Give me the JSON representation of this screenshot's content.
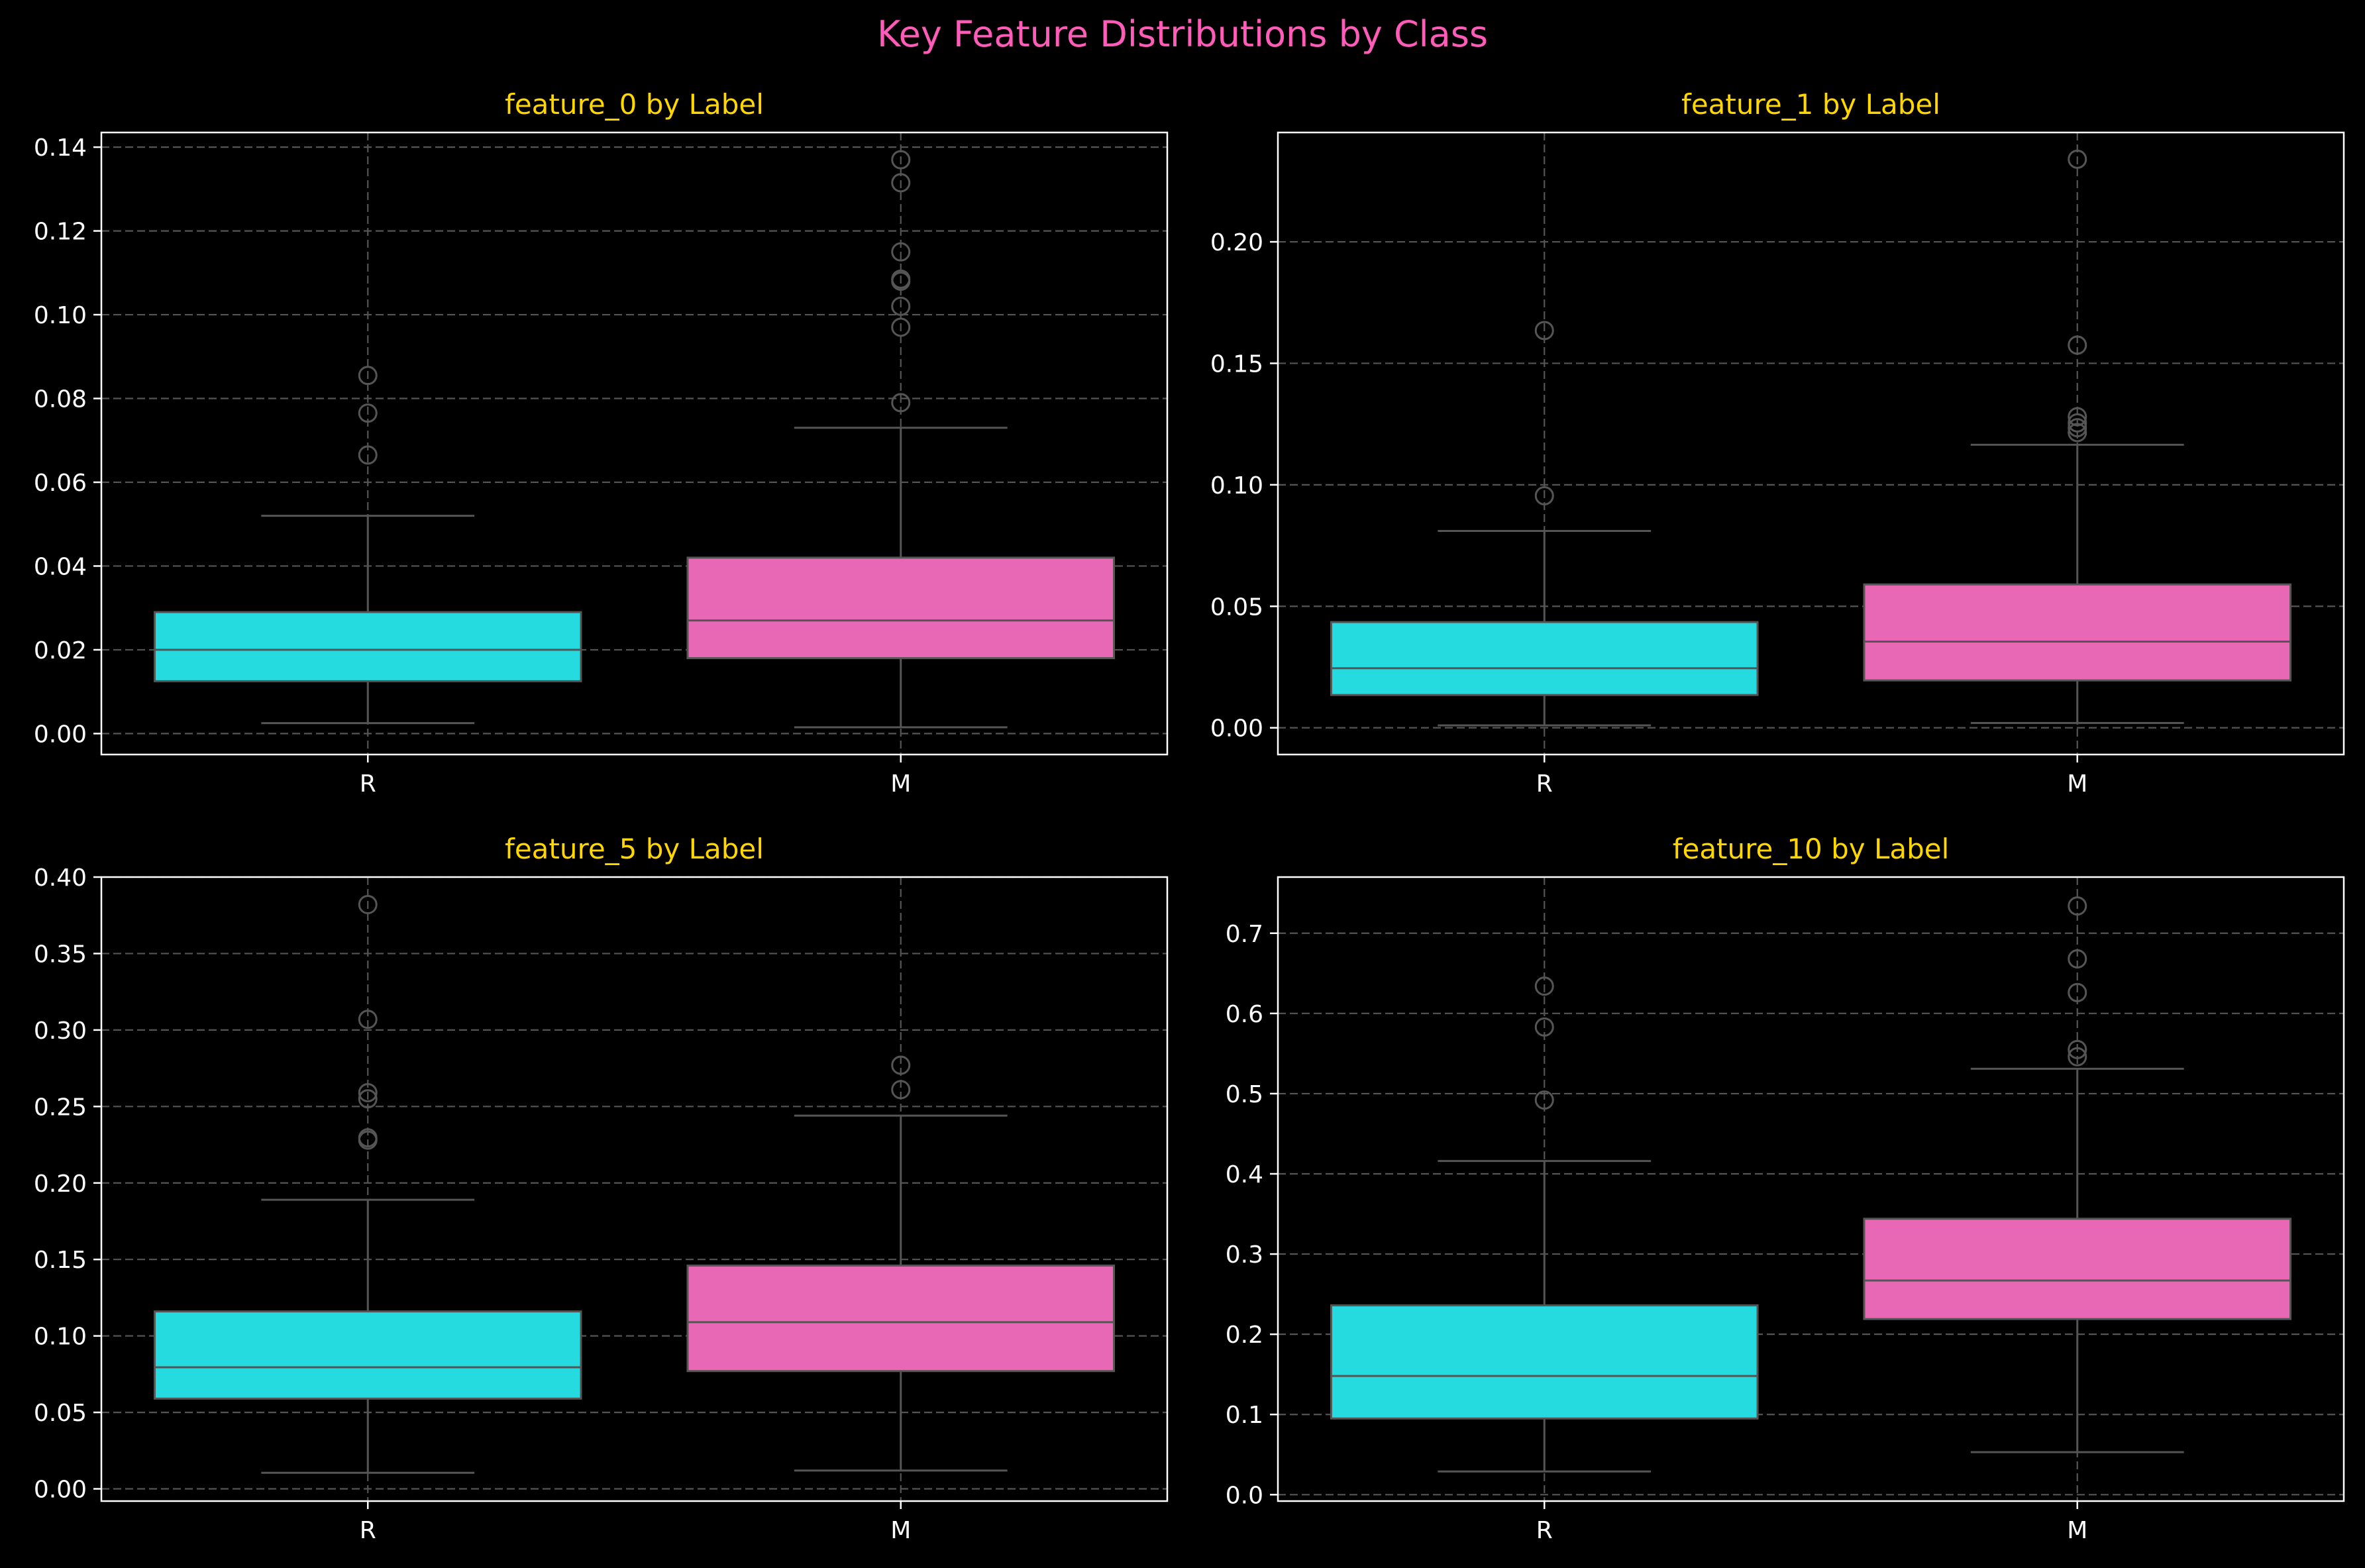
{
  "figure": {
    "title": "Key Feature Distributions by Class",
    "background": "#000000",
    "title_color": "#ff5bb8",
    "subtitle_color": "#ffd700",
    "axis_color": "#ffffff",
    "grid_color": "#555555",
    "whisker_color": "#555555"
  },
  "chart_data": [
    {
      "type": "box",
      "title": "feature_0 by Label",
      "categories": [
        "R",
        "M"
      ],
      "colors": [
        "#26dbe0",
        "#e868b6"
      ],
      "ylim": [
        -0.005,
        0.1435
      ],
      "yticks": [
        0.0,
        0.02,
        0.04,
        0.06,
        0.08,
        0.1,
        0.12,
        0.14
      ],
      "ytick_labels": [
        "0.00",
        "0.02",
        "0.04",
        "0.06",
        "0.08",
        "0.10",
        "0.12",
        "0.14"
      ],
      "grid": true,
      "boxes": [
        {
          "category": "R",
          "whisker_low": 0.0025,
          "q1": 0.0125,
          "median": 0.02,
          "q3": 0.029,
          "whisker_high": 0.052,
          "outliers": [
            0.0665,
            0.0765,
            0.0855
          ]
        },
        {
          "category": "M",
          "whisker_low": 0.0015,
          "q1": 0.018,
          "median": 0.027,
          "q3": 0.042,
          "whisker_high": 0.073,
          "outliers": [
            0.079,
            0.097,
            0.102,
            0.108,
            0.1085,
            0.115,
            0.1315,
            0.137
          ]
        }
      ]
    },
    {
      "type": "box",
      "title": "feature_1 by Label",
      "categories": [
        "R",
        "M"
      ],
      "colors": [
        "#26dbe0",
        "#e868b6"
      ],
      "ylim": [
        -0.011,
        0.245
      ],
      "yticks": [
        0.0,
        0.05,
        0.1,
        0.15,
        0.2
      ],
      "ytick_labels": [
        "0.00",
        "0.05",
        "0.10",
        "0.15",
        "0.20"
      ],
      "grid": true,
      "boxes": [
        {
          "category": "R",
          "whisker_low": 0.001,
          "q1": 0.0135,
          "median": 0.0245,
          "q3": 0.0435,
          "whisker_high": 0.081,
          "outliers": [
            0.0955,
            0.1635
          ]
        },
        {
          "category": "M",
          "whisker_low": 0.002,
          "q1": 0.0195,
          "median": 0.0355,
          "q3": 0.059,
          "whisker_high": 0.1165,
          "outliers": [
            0.1215,
            0.1235,
            0.1255,
            0.128,
            0.1575,
            0.234
          ]
        }
      ]
    },
    {
      "type": "box",
      "title": "feature_5 by Label",
      "categories": [
        "R",
        "M"
      ],
      "colors": [
        "#26dbe0",
        "#e868b6"
      ],
      "ylim": [
        -0.008,
        0.4
      ],
      "yticks": [
        0.0,
        0.05,
        0.1,
        0.15,
        0.2,
        0.25,
        0.3,
        0.35,
        0.4
      ],
      "ytick_labels": [
        "0.00",
        "0.05",
        "0.10",
        "0.15",
        "0.20",
        "0.25",
        "0.30",
        "0.35",
        "0.40"
      ],
      "grid": true,
      "boxes": [
        {
          "category": "R",
          "whisker_low": 0.0105,
          "q1": 0.059,
          "median": 0.0795,
          "q3": 0.116,
          "whisker_high": 0.189,
          "outliers": [
            0.228,
            0.2295,
            0.255,
            0.259,
            0.307,
            0.382
          ]
        },
        {
          "category": "M",
          "whisker_low": 0.012,
          "q1": 0.077,
          "median": 0.109,
          "q3": 0.146,
          "whisker_high": 0.244,
          "outliers": [
            0.261,
            0.277
          ]
        }
      ]
    },
    {
      "type": "box",
      "title": "feature_10 by Label",
      "categories": [
        "R",
        "M"
      ],
      "colors": [
        "#26dbe0",
        "#e868b6"
      ],
      "ylim": [
        -0.008,
        0.77
      ],
      "yticks": [
        0.0,
        0.1,
        0.2,
        0.3,
        0.4,
        0.5,
        0.6,
        0.7
      ],
      "ytick_labels": [
        "0.0",
        "0.1",
        "0.2",
        "0.3",
        "0.4",
        "0.5",
        "0.6",
        "0.7"
      ],
      "grid": true,
      "boxes": [
        {
          "category": "R",
          "whisker_low": 0.029,
          "q1": 0.095,
          "median": 0.148,
          "q3": 0.236,
          "whisker_high": 0.416,
          "outliers": [
            0.492,
            0.583,
            0.634
          ]
        },
        {
          "category": "M",
          "whisker_low": 0.053,
          "q1": 0.219,
          "median": 0.267,
          "q3": 0.344,
          "whisker_high": 0.531,
          "outliers": [
            0.546,
            0.555,
            0.626,
            0.668,
            0.734
          ]
        }
      ]
    }
  ]
}
